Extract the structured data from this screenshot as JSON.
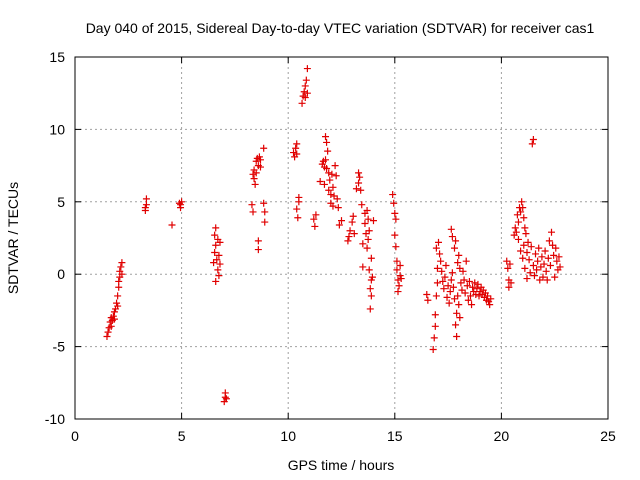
{
  "chart_data": {
    "type": "scatter",
    "title": "Day 040 of 2015, Sidereal Day-to-day VTEC variation (SDTVAR) for receiver cas1",
    "xlabel": "GPS time / hours",
    "ylabel": "SDTVAR / TECUs",
    "xlim": [
      0,
      25
    ],
    "ylim": [
      -10,
      15
    ],
    "x_ticks": [
      0,
      5,
      10,
      15,
      20,
      25
    ],
    "y_ticks": [
      -10,
      -5,
      0,
      5,
      10,
      15
    ],
    "x_tick_labels": [
      "0",
      "5",
      "10",
      "15",
      "20",
      "25"
    ],
    "y_tick_labels": [
      "-10",
      "-5",
      "0",
      "5",
      "10",
      "15"
    ],
    "grid": true,
    "marker": "+",
    "series": [
      {
        "name": "cas1",
        "color": "#e00000",
        "points": [
          [
            1.5,
            -4.3
          ],
          [
            1.55,
            -4.0
          ],
          [
            1.6,
            -3.7
          ],
          [
            1.65,
            -3.3
          ],
          [
            1.7,
            -3.6
          ],
          [
            1.7,
            -3.0
          ],
          [
            1.75,
            -3.2
          ],
          [
            1.8,
            -2.9
          ],
          [
            1.85,
            -3.1
          ],
          [
            1.85,
            -2.6
          ],
          [
            1.9,
            -2.4
          ],
          [
            1.95,
            -2.0
          ],
          [
            2.0,
            -1.5
          ],
          [
            2.0,
            -2.2
          ],
          [
            2.05,
            -0.5
          ],
          [
            2.05,
            -0.9
          ],
          [
            2.1,
            -0.2
          ],
          [
            2.1,
            0.2
          ],
          [
            2.15,
            0.5
          ],
          [
            2.2,
            0.8
          ],
          [
            2.2,
            0.0
          ],
          [
            3.3,
            4.6
          ],
          [
            3.3,
            4.4
          ],
          [
            3.35,
            5.2
          ],
          [
            3.35,
            4.8
          ],
          [
            4.55,
            3.4
          ],
          [
            4.9,
            4.9
          ],
          [
            4.95,
            4.6
          ],
          [
            4.95,
            4.8
          ],
          [
            5.0,
            5.0
          ],
          [
            6.5,
            0.8
          ],
          [
            6.55,
            2.7
          ],
          [
            6.55,
            1.5
          ],
          [
            6.6,
            3.2
          ],
          [
            6.6,
            2.0
          ],
          [
            6.6,
            -0.5
          ],
          [
            6.65,
            1.0
          ],
          [
            6.7,
            2.4
          ],
          [
            6.7,
            0.3
          ],
          [
            6.75,
            1.3
          ],
          [
            6.75,
            -0.1
          ],
          [
            6.8,
            2.2
          ],
          [
            6.8,
            0.7
          ],
          [
            7.0,
            -8.8
          ],
          [
            7.05,
            -8.5
          ],
          [
            7.05,
            -8.2
          ],
          [
            7.1,
            -8.6
          ],
          [
            8.3,
            4.8
          ],
          [
            8.35,
            6.9
          ],
          [
            8.35,
            4.3
          ],
          [
            8.4,
            6.6
          ],
          [
            8.4,
            7.2
          ],
          [
            8.45,
            6.2
          ],
          [
            8.5,
            7.0
          ],
          [
            8.5,
            7.8
          ],
          [
            8.55,
            8.0
          ],
          [
            8.6,
            7.5
          ],
          [
            8.6,
            2.3
          ],
          [
            8.6,
            1.7
          ],
          [
            8.65,
            8.1
          ],
          [
            8.7,
            7.9
          ],
          [
            8.7,
            7.4
          ],
          [
            8.85,
            8.7
          ],
          [
            8.85,
            4.9
          ],
          [
            8.9,
            4.3
          ],
          [
            8.9,
            3.6
          ],
          [
            10.25,
            8.4
          ],
          [
            10.3,
            8.1
          ],
          [
            10.35,
            8.7
          ],
          [
            10.4,
            9.0
          ],
          [
            10.4,
            8.3
          ],
          [
            10.4,
            4.5
          ],
          [
            10.45,
            3.9
          ],
          [
            10.5,
            5.0
          ],
          [
            10.5,
            5.3
          ],
          [
            10.65,
            11.8
          ],
          [
            10.7,
            12.3
          ],
          [
            10.75,
            12.6
          ],
          [
            10.8,
            12.2
          ],
          [
            10.8,
            13.0
          ],
          [
            10.85,
            13.4
          ],
          [
            10.9,
            14.2
          ],
          [
            10.9,
            12.5
          ],
          [
            11.2,
            3.8
          ],
          [
            11.25,
            3.3
          ],
          [
            11.3,
            4.1
          ],
          [
            11.5,
            6.4
          ],
          [
            11.6,
            7.6
          ],
          [
            11.65,
            7.8
          ],
          [
            11.7,
            7.4
          ],
          [
            11.7,
            6.2
          ],
          [
            11.75,
            7.9
          ],
          [
            11.75,
            9.5
          ],
          [
            11.8,
            9.1
          ],
          [
            11.8,
            7.3
          ],
          [
            11.85,
            8.5
          ],
          [
            11.9,
            7.0
          ],
          [
            11.9,
            5.8
          ],
          [
            11.95,
            6.5
          ],
          [
            12.0,
            5.5
          ],
          [
            12.0,
            4.9
          ],
          [
            12.05,
            6.9
          ],
          [
            12.1,
            6.0
          ],
          [
            12.1,
            4.7
          ],
          [
            12.15,
            5.4
          ],
          [
            12.2,
            7.5
          ],
          [
            12.25,
            6.8
          ],
          [
            12.3,
            5.2
          ],
          [
            12.35,
            4.6
          ],
          [
            12.4,
            3.4
          ],
          [
            12.5,
            3.7
          ],
          [
            12.8,
            2.3
          ],
          [
            12.85,
            2.6
          ],
          [
            12.9,
            3.0
          ],
          [
            13.0,
            3.6
          ],
          [
            13.05,
            4.0
          ],
          [
            13.1,
            2.8
          ],
          [
            13.2,
            5.9
          ],
          [
            13.3,
            7.0
          ],
          [
            13.3,
            6.3
          ],
          [
            13.35,
            6.7
          ],
          [
            13.4,
            5.8
          ],
          [
            13.45,
            4.8
          ],
          [
            13.5,
            2.1
          ],
          [
            13.5,
            0.5
          ],
          [
            13.6,
            4.2
          ],
          [
            13.6,
            3.5
          ],
          [
            13.65,
            2.8
          ],
          [
            13.7,
            4.4
          ],
          [
            13.7,
            1.8
          ],
          [
            13.75,
            3.8
          ],
          [
            13.75,
            2.4
          ],
          [
            13.8,
            3.0
          ],
          [
            13.8,
            0.3
          ],
          [
            13.85,
            -1.0
          ],
          [
            13.85,
            -2.4
          ],
          [
            13.9,
            -1.5
          ],
          [
            13.9,
            -0.4
          ],
          [
            13.9,
            1.1
          ],
          [
            13.95,
            -0.2
          ],
          [
            14.0,
            3.7
          ],
          [
            14.9,
            5.5
          ],
          [
            14.95,
            4.9
          ],
          [
            15.0,
            4.2
          ],
          [
            15.0,
            2.7
          ],
          [
            15.05,
            1.9
          ],
          [
            15.05,
            3.8
          ],
          [
            15.1,
            0.9
          ],
          [
            15.1,
            0.3
          ],
          [
            15.15,
            -0.4
          ],
          [
            15.15,
            -1.2
          ],
          [
            15.2,
            -0.8
          ],
          [
            15.25,
            -0.1
          ],
          [
            15.25,
            0.6
          ],
          [
            15.3,
            -0.3
          ],
          [
            16.5,
            -1.4
          ],
          [
            16.55,
            -1.8
          ],
          [
            16.8,
            -5.2
          ],
          [
            16.85,
            -4.4
          ],
          [
            16.9,
            -3.6
          ],
          [
            16.9,
            -2.8
          ],
          [
            16.95,
            -1.5
          ],
          [
            16.95,
            1.8
          ],
          [
            17.0,
            -0.6
          ],
          [
            17.0,
            0.4
          ],
          [
            17.05,
            2.2
          ],
          [
            17.1,
            1.4
          ],
          [
            17.15,
            0.9
          ],
          [
            17.2,
            0.2
          ],
          [
            17.25,
            -0.5
          ],
          [
            17.3,
            -1.0
          ],
          [
            17.35,
            -0.2
          ],
          [
            17.4,
            0.6
          ],
          [
            17.45,
            -1.6
          ],
          [
            17.5,
            -0.8
          ],
          [
            17.55,
            -2.0
          ],
          [
            17.6,
            -1.2
          ],
          [
            17.65,
            -0.4
          ],
          [
            17.65,
            3.1
          ],
          [
            17.7,
            2.6
          ],
          [
            17.7,
            0.1
          ],
          [
            17.75,
            -0.9
          ],
          [
            17.8,
            -1.7
          ],
          [
            17.8,
            1.8
          ],
          [
            17.85,
            2.3
          ],
          [
            17.85,
            -3.5
          ],
          [
            17.9,
            -2.7
          ],
          [
            17.9,
            -4.3
          ],
          [
            17.95,
            -1.5
          ],
          [
            17.95,
            0.8
          ],
          [
            18.0,
            1.3
          ],
          [
            18.0,
            -2.1
          ],
          [
            18.05,
            -3.0
          ],
          [
            18.05,
            0.4
          ],
          [
            18.1,
            -0.6
          ],
          [
            18.15,
            -1.1
          ],
          [
            18.2,
            0.2
          ],
          [
            18.25,
            -0.4
          ],
          [
            18.3,
            -1.3
          ],
          [
            18.35,
            0.9
          ],
          [
            18.4,
            -0.8
          ],
          [
            18.45,
            -1.8
          ],
          [
            18.5,
            -0.5
          ],
          [
            18.55,
            -1.5
          ],
          [
            18.6,
            -2.1
          ],
          [
            18.65,
            -0.9
          ],
          [
            18.7,
            -1.2
          ],
          [
            18.75,
            -0.6
          ],
          [
            18.8,
            -1.4
          ],
          [
            18.85,
            -1.0
          ],
          [
            18.9,
            -0.7
          ],
          [
            18.95,
            -1.5
          ],
          [
            19.0,
            -1.2
          ],
          [
            19.05,
            -0.9
          ],
          [
            19.1,
            -1.4
          ],
          [
            19.15,
            -1.1
          ],
          [
            19.2,
            -1.6
          ],
          [
            19.25,
            -1.3
          ],
          [
            19.3,
            -1.8
          ],
          [
            19.35,
            -1.5
          ],
          [
            19.4,
            -1.9
          ],
          [
            19.45,
            -2.1
          ],
          [
            19.5,
            -1.7
          ],
          [
            20.25,
            0.9
          ],
          [
            20.3,
            0.4
          ],
          [
            20.35,
            -0.4
          ],
          [
            20.35,
            -0.9
          ],
          [
            20.4,
            0.7
          ],
          [
            20.45,
            -0.6
          ],
          [
            20.6,
            2.7
          ],
          [
            20.65,
            3.2
          ],
          [
            20.7,
            2.9
          ],
          [
            20.75,
            4.1
          ],
          [
            20.8,
            3.6
          ],
          [
            20.8,
            2.4
          ],
          [
            20.85,
            4.6
          ],
          [
            20.9,
            4.3
          ],
          [
            20.9,
            1.6
          ],
          [
            20.95,
            5.0
          ],
          [
            21.0,
            4.6
          ],
          [
            21.0,
            1.1
          ],
          [
            21.05,
            3.9
          ],
          [
            21.05,
            2.0
          ],
          [
            21.1,
            3.2
          ],
          [
            21.1,
            0.4
          ],
          [
            21.15,
            2.8
          ],
          [
            21.2,
            1.5
          ],
          [
            21.2,
            -0.3
          ],
          [
            21.25,
            2.2
          ],
          [
            21.3,
            1.0
          ],
          [
            21.35,
            0.1
          ],
          [
            21.4,
            1.9
          ],
          [
            21.45,
            9.0
          ],
          [
            21.5,
            9.3
          ],
          [
            21.5,
            0.6
          ],
          [
            21.55,
            -0.1
          ],
          [
            21.6,
            1.4
          ],
          [
            21.65,
            0.3
          ],
          [
            21.7,
            0.9
          ],
          [
            21.75,
            1.8
          ],
          [
            21.8,
            -0.4
          ],
          [
            21.85,
            0.5
          ],
          [
            21.9,
            1.2
          ],
          [
            21.95,
            -0.2
          ],
          [
            22.0,
            0.7
          ],
          [
            22.05,
            1.6
          ],
          [
            22.1,
            0.2
          ],
          [
            22.15,
            -0.4
          ],
          [
            22.2,
            1.1
          ],
          [
            22.25,
            2.3
          ],
          [
            22.3,
            0.6
          ],
          [
            22.35,
            2.9
          ],
          [
            22.4,
            2.0
          ],
          [
            22.45,
            1.3
          ],
          [
            22.5,
            -0.2
          ],
          [
            22.55,
            1.8
          ],
          [
            22.6,
            0.9
          ],
          [
            22.65,
            0.3
          ],
          [
            22.7,
            1.2
          ],
          [
            22.75,
            0.5
          ]
        ]
      }
    ]
  }
}
